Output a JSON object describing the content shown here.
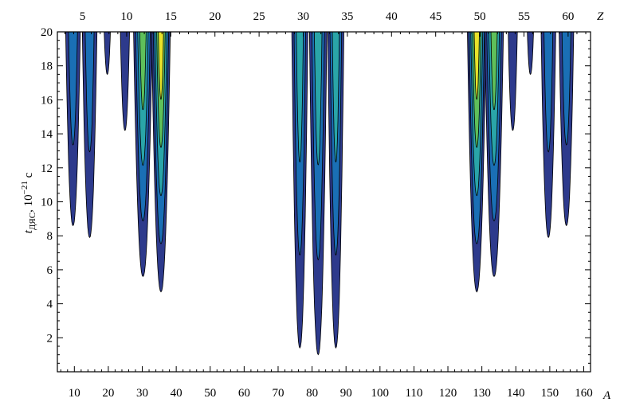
{
  "chart_data": {
    "type": "contour",
    "colors": {
      "outer": "#2d3a8c",
      "level2": "#1a6fb5",
      "level3": "#2aa5a8",
      "level4": "#5fc05a",
      "level5": "#e8e32a",
      "line": "#000000"
    },
    "x_axis": {
      "letter": "A",
      "range": [
        5,
        162
      ],
      "ticks": [
        "10",
        "20",
        "30",
        "40",
        "50",
        "60",
        "70",
        "80",
        "90",
        "100",
        "110",
        "120",
        "130",
        "140",
        "150",
        "160"
      ],
      "tick_values": [
        10,
        20,
        30,
        40,
        50,
        60,
        70,
        80,
        90,
        100,
        110,
        120,
        130,
        140,
        150,
        160
      ]
    },
    "top_axis": {
      "letter": "Z",
      "ticks": [
        "5",
        "10",
        "15",
        "20",
        "25",
        "30",
        "35",
        "40",
        "45",
        "50",
        "55",
        "60"
      ],
      "tick_values": [
        5,
        10,
        15,
        20,
        25,
        30,
        35,
        40,
        45,
        50,
        55,
        60
      ]
    },
    "y_axis": {
      "label_main": "t",
      "label_sub": "ДЯС",
      "label_rest": ", 10",
      "label_exp": "−21",
      "label_unit": " с",
      "range": [
        0,
        20
      ],
      "ticks": [
        "2",
        "4",
        "6",
        "8",
        "10",
        "12",
        "14",
        "16",
        "18",
        "20"
      ],
      "tick_values": [
        2,
        4,
        6,
        8,
        10,
        12,
        14,
        16,
        18,
        20
      ]
    },
    "lobes": [
      {
        "a": 9.6,
        "tmin": 8.6,
        "width": 2.2,
        "levels": 2
      },
      {
        "a": 14.5,
        "tmin": 7.9,
        "width": 2.2,
        "levels": 2
      },
      {
        "a": 19.7,
        "tmin": 17.5,
        "width": 1.0,
        "levels": 1
      },
      {
        "a": 24.9,
        "tmin": 14.2,
        "width": 1.4,
        "levels": 1
      },
      {
        "a": 30.2,
        "tmin": 5.6,
        "width": 2.8,
        "levels": 4
      },
      {
        "a": 35.5,
        "tmin": 4.7,
        "width": 2.8,
        "levels": 5
      },
      {
        "a": 76.4,
        "tmin": 1.4,
        "width": 2.4,
        "levels": 3
      },
      {
        "a": 81.8,
        "tmin": 1.0,
        "width": 2.6,
        "levels": 3
      },
      {
        "a": 87.0,
        "tmin": 1.4,
        "width": 2.4,
        "levels": 3
      },
      {
        "a": 128.5,
        "tmin": 4.7,
        "width": 2.8,
        "levels": 5
      },
      {
        "a": 133.6,
        "tmin": 5.6,
        "width": 2.8,
        "levels": 4
      },
      {
        "a": 139.1,
        "tmin": 14.2,
        "width": 1.4,
        "levels": 1
      },
      {
        "a": 144.3,
        "tmin": 17.5,
        "width": 1.0,
        "levels": 1
      },
      {
        "a": 149.6,
        "tmin": 7.9,
        "width": 2.2,
        "levels": 2
      },
      {
        "a": 154.9,
        "tmin": 8.6,
        "width": 2.2,
        "levels": 2
      }
    ]
  }
}
